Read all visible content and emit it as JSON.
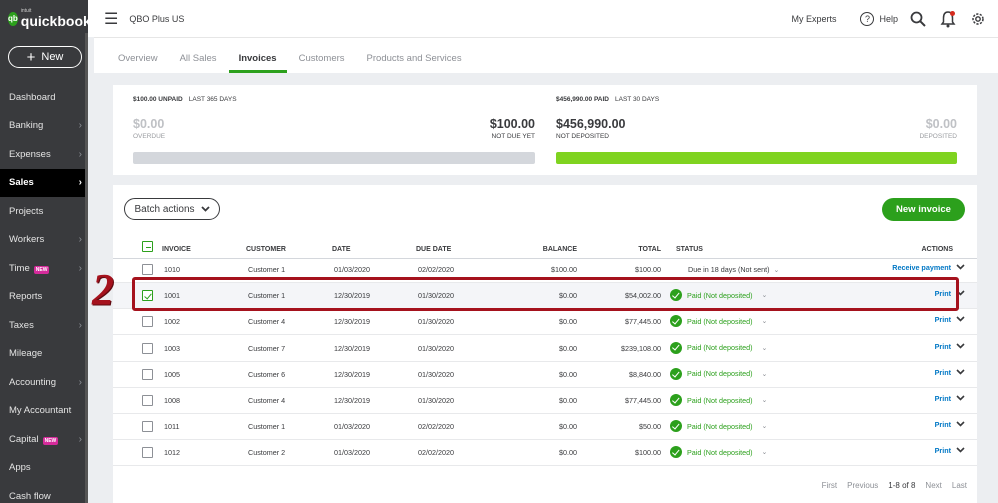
{
  "brand": {
    "logo_badge": "qb",
    "logo_small": "intuit",
    "logo_text": "quickbooks"
  },
  "sidebar": {
    "new_label": "New",
    "items": [
      {
        "label": "Dashboard",
        "chevron": false,
        "badge": ""
      },
      {
        "label": "Banking",
        "chevron": true,
        "badge": ""
      },
      {
        "label": "Expenses",
        "chevron": true,
        "badge": ""
      },
      {
        "label": "Sales",
        "chevron": true,
        "badge": "",
        "active": true
      },
      {
        "label": "Projects",
        "chevron": false,
        "badge": ""
      },
      {
        "label": "Workers",
        "chevron": true,
        "badge": ""
      },
      {
        "label": "Time",
        "chevron": true,
        "badge": "NEW"
      },
      {
        "label": "Reports",
        "chevron": false,
        "badge": ""
      },
      {
        "label": "Taxes",
        "chevron": true,
        "badge": ""
      },
      {
        "label": "Mileage",
        "chevron": false,
        "badge": ""
      },
      {
        "label": "Accounting",
        "chevron": true,
        "badge": ""
      },
      {
        "label": "My Accountant",
        "chevron": false,
        "badge": ""
      },
      {
        "label": "Capital",
        "chevron": true,
        "badge": "NEW"
      },
      {
        "label": "Apps",
        "chevron": false,
        "badge": ""
      },
      {
        "label": "Cash flow",
        "chevron": false,
        "badge": ""
      }
    ]
  },
  "topbar": {
    "company": "QBO Plus US",
    "my_experts": "My Experts",
    "help": "Help",
    "help_glyph": "?"
  },
  "subnav": {
    "tabs": [
      "Overview",
      "All Sales",
      "Invoices",
      "Customers",
      "Products and Services"
    ],
    "active": "Invoices"
  },
  "summary": {
    "unpaid_head_amount": "$100.00 UNPAID",
    "unpaid_head_period": "LAST 365 DAYS",
    "overdue_amount": "$0.00",
    "overdue_label": "OVERDUE",
    "not_due_amount": "$100.00",
    "not_due_label": "NOT DUE YET",
    "paid_head_amount": "$456,990.00 PAID",
    "paid_head_period": "LAST 30 DAYS",
    "not_deposited_amount": "$456,990.00",
    "not_deposited_label": "NOT DEPOSITED",
    "deposited_amount": "$0.00",
    "deposited_label": "DEPOSITED",
    "unpaid_bar_color": "#d4d7dc",
    "paid_bar_color": "#7fd320"
  },
  "toolbar": {
    "batch_label": "Batch actions",
    "new_invoice_label": "New invoice"
  },
  "table": {
    "headers": {
      "invoice": "INVOICE",
      "customer": "CUSTOMER",
      "date": "DATE",
      "due_date": "DUE DATE",
      "balance": "BALANCE",
      "total": "TOTAL",
      "status": "STATUS",
      "actions": "ACTIONS"
    },
    "rows": [
      {
        "invoice": "1010",
        "customer": "Customer 1",
        "date": "01/03/2020",
        "due_date": "02/02/2020",
        "balance": "$100.00",
        "total": "$100.00",
        "status": "Due in 18 days (Not sent)",
        "paid": false,
        "action": "Receive payment",
        "checked": false
      },
      {
        "invoice": "1001",
        "customer": "Customer 1",
        "date": "12/30/2019",
        "due_date": "01/30/2020",
        "balance": "$0.00",
        "total": "$54,002.00",
        "status": "Paid (Not deposited)",
        "paid": true,
        "action": "Print",
        "checked": true
      },
      {
        "invoice": "1002",
        "customer": "Customer 4",
        "date": "12/30/2019",
        "due_date": "01/30/2020",
        "balance": "$0.00",
        "total": "$77,445.00",
        "status": "Paid (Not deposited)",
        "paid": true,
        "action": "Print",
        "checked": false
      },
      {
        "invoice": "1003",
        "customer": "Customer 7",
        "date": "12/30/2019",
        "due_date": "01/30/2020",
        "balance": "$0.00",
        "total": "$239,108.00",
        "status": "Paid (Not deposited)",
        "paid": true,
        "action": "Print",
        "checked": false
      },
      {
        "invoice": "1005",
        "customer": "Customer 6",
        "date": "12/30/2019",
        "due_date": "01/30/2020",
        "balance": "$0.00",
        "total": "$8,840.00",
        "status": "Paid (Not deposited)",
        "paid": true,
        "action": "Print",
        "checked": false
      },
      {
        "invoice": "1008",
        "customer": "Customer 4",
        "date": "12/30/2019",
        "due_date": "01/30/2020",
        "balance": "$0.00",
        "total": "$77,445.00",
        "status": "Paid (Not deposited)",
        "paid": true,
        "action": "Print",
        "checked": false
      },
      {
        "invoice": "1011",
        "customer": "Customer 1",
        "date": "01/03/2020",
        "due_date": "02/02/2020",
        "balance": "$0.00",
        "total": "$50.00",
        "status": "Paid (Not deposited)",
        "paid": true,
        "action": "Print",
        "checked": false
      },
      {
        "invoice": "1012",
        "customer": "Customer 2",
        "date": "01/03/2020",
        "due_date": "02/02/2020",
        "balance": "$0.00",
        "total": "$100.00",
        "status": "Paid (Not deposited)",
        "paid": true,
        "action": "Print",
        "checked": false
      }
    ]
  },
  "pager": {
    "first": "First",
    "previous": "Previous",
    "range": "1-8 of 8",
    "next": "Next",
    "last": "Last"
  },
  "annotation": {
    "step": "2",
    "color": "#a5121d"
  }
}
